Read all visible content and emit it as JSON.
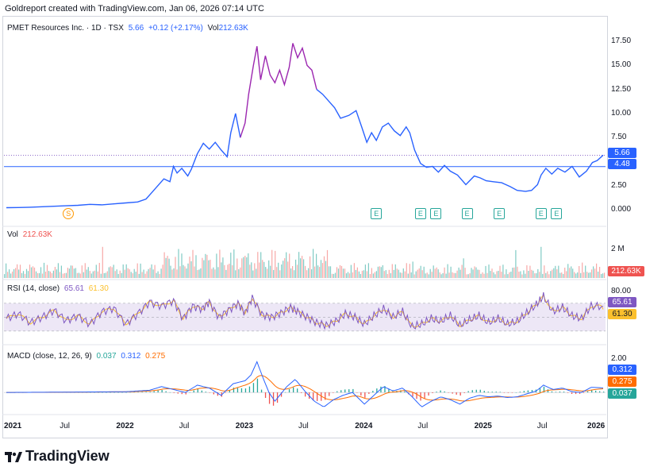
{
  "header": {
    "credit": "Goldreport created with TradingView.com, Jan 06, 2026 07:14 UTC"
  },
  "legend": {
    "symbol": "PMET Resources Inc. · 1D · TSX",
    "last": "5.66",
    "change": "+0.12 (+2.17%)",
    "vol_label": "Vol",
    "vol_value": "212.63K"
  },
  "volume_pane": {
    "label": "Vol",
    "value": "212.63K",
    "tick": "2 M",
    "tag": "212.63K"
  },
  "rsi_pane": {
    "label": "RSI (14, close)",
    "rsi": "65.61",
    "ma": "61.30",
    "tick": "80.00",
    "tag_rsi": "65.61",
    "tag_ma": "61.30"
  },
  "macd_pane": {
    "label": "MACD (close, 12, 26, 9)",
    "hist": "0.037",
    "macd": "0.312",
    "signal": "0.275",
    "tick": "2.00",
    "tag_macd": "0.312",
    "tag_signal": "0.275",
    "tag_hist": "0.037"
  },
  "price_tags": {
    "last": "5.66",
    "line": "4.48"
  },
  "markers": {
    "split": "S",
    "earnings": "E"
  },
  "colors": {
    "price_blue": "#2962ff",
    "price_purple": "#9c27b0",
    "up": "#26a69a",
    "down": "#ef5350",
    "rsi": "#7e57c2",
    "rsi_ma": "#fbc02d",
    "macd": "#2962ff",
    "signal": "#ff6d00"
  },
  "brand": "TradingView",
  "chart_data": {
    "type": "line",
    "title": "PMET Resources Inc. · 1D · TSX",
    "y_ticks": [
      "17.50",
      "15.00",
      "12.50",
      "10.00",
      "7.50",
      "2.50",
      "0.000"
    ],
    "ylim": [
      -0.5,
      18.5
    ],
    "x_ticks": [
      {
        "label": "2021",
        "t": 2021.0,
        "year": true
      },
      {
        "label": "Jul",
        "t": 2021.5,
        "year": false
      },
      {
        "label": "2022",
        "t": 2022.0,
        "year": true
      },
      {
        "label": "Jul",
        "t": 2022.5,
        "year": false
      },
      {
        "label": "2023",
        "t": 2023.0,
        "year": true
      },
      {
        "label": "Jul",
        "t": 2023.5,
        "year": false
      },
      {
        "label": "2024",
        "t": 2024.0,
        "year": true
      },
      {
        "label": "Jul",
        "t": 2024.5,
        "year": false
      },
      {
        "label": "2025",
        "t": 2025.0,
        "year": true
      },
      {
        "label": "Jul",
        "t": 2025.5,
        "year": false
      },
      {
        "label": "2026",
        "t": 2026.0,
        "year": true
      }
    ],
    "xlim": [
      2020.98,
      2026.02
    ],
    "horizontal_line": 4.48,
    "last_price": 5.66,
    "price": [
      [
        2021.0,
        0.2
      ],
      [
        2021.1,
        0.22
      ],
      [
        2021.2,
        0.25
      ],
      [
        2021.3,
        0.3
      ],
      [
        2021.4,
        0.35
      ],
      [
        2021.5,
        0.4
      ],
      [
        2021.6,
        0.45
      ],
      [
        2021.7,
        0.55
      ],
      [
        2021.8,
        0.5
      ],
      [
        2021.9,
        0.6
      ],
      [
        2022.0,
        0.7
      ],
      [
        2022.1,
        0.8
      ],
      [
        2022.17,
        1.1
      ],
      [
        2022.22,
        1.8
      ],
      [
        2022.27,
        2.5
      ],
      [
        2022.32,
        3.2
      ],
      [
        2022.37,
        2.9
      ],
      [
        2022.4,
        4.5
      ],
      [
        2022.43,
        3.8
      ],
      [
        2022.47,
        4.3
      ],
      [
        2022.52,
        3.5
      ],
      [
        2022.55,
        4.2
      ],
      [
        2022.6,
        5.8
      ],
      [
        2022.65,
        6.9
      ],
      [
        2022.7,
        6.3
      ],
      [
        2022.75,
        7.0
      ],
      [
        2022.8,
        6.2
      ],
      [
        2022.85,
        5.5
      ],
      [
        2022.88,
        8.0
      ],
      [
        2022.92,
        10.0
      ],
      [
        2022.96,
        7.5
      ],
      [
        2023.0,
        9.0
      ],
      [
        2023.03,
        12.0
      ],
      [
        2023.07,
        15.0
      ],
      [
        2023.1,
        17.0
      ],
      [
        2023.13,
        13.5
      ],
      [
        2023.17,
        16.0
      ],
      [
        2023.21,
        14.0
      ],
      [
        2023.25,
        13.2
      ],
      [
        2023.29,
        14.5
      ],
      [
        2023.33,
        13.0
      ],
      [
        2023.37,
        14.8
      ],
      [
        2023.4,
        17.3
      ],
      [
        2023.44,
        15.8
      ],
      [
        2023.48,
        16.8
      ],
      [
        2023.52,
        15.0
      ],
      [
        2023.56,
        14.5
      ],
      [
        2023.6,
        12.5
      ],
      [
        2023.65,
        12.0
      ],
      [
        2023.7,
        11.3
      ],
      [
        2023.75,
        10.6
      ],
      [
        2023.8,
        9.5
      ],
      [
        2023.87,
        9.8
      ],
      [
        2023.93,
        10.3
      ],
      [
        2023.98,
        8.5
      ],
      [
        2024.02,
        7.0
      ],
      [
        2024.06,
        8.0
      ],
      [
        2024.1,
        7.2
      ],
      [
        2024.15,
        8.6
      ],
      [
        2024.2,
        9.0
      ],
      [
        2024.25,
        8.2
      ],
      [
        2024.3,
        7.7
      ],
      [
        2024.35,
        8.6
      ],
      [
        2024.38,
        8.0
      ],
      [
        2024.42,
        6.2
      ],
      [
        2024.47,
        4.8
      ],
      [
        2024.52,
        4.4
      ],
      [
        2024.57,
        4.5
      ],
      [
        2024.62,
        3.9
      ],
      [
        2024.67,
        4.6
      ],
      [
        2024.72,
        4.0
      ],
      [
        2024.78,
        3.6
      ],
      [
        2024.85,
        2.6
      ],
      [
        2024.92,
        3.5
      ],
      [
        2024.97,
        3.3
      ],
      [
        2025.02,
        3.0
      ],
      [
        2025.08,
        2.9
      ],
      [
        2025.15,
        2.8
      ],
      [
        2025.22,
        2.4
      ],
      [
        2025.28,
        2.0
      ],
      [
        2025.35,
        1.9
      ],
      [
        2025.4,
        2.0
      ],
      [
        2025.45,
        2.6
      ],
      [
        2025.48,
        3.6
      ],
      [
        2025.52,
        4.3
      ],
      [
        2025.57,
        3.7
      ],
      [
        2025.62,
        4.3
      ],
      [
        2025.68,
        3.9
      ],
      [
        2025.74,
        4.5
      ],
      [
        2025.8,
        3.4
      ],
      [
        2025.86,
        4.0
      ],
      [
        2025.91,
        4.9
      ],
      [
        2025.95,
        5.1
      ],
      [
        2026.0,
        5.66
      ]
    ],
    "peak_range": [
      2022.98,
      2023.62
    ],
    "split_marker": {
      "t": 2021.52,
      "label": "S"
    },
    "earnings_markers": [
      2024.1,
      2024.47,
      2024.6,
      2024.86,
      2025.13,
      2025.48,
      2025.61
    ],
    "volume_tick": "2 M",
    "rsi": {
      "ticks": [
        "80.00"
      ],
      "band": [
        30,
        70
      ],
      "last": 65.61,
      "ma_last": 61.3,
      "series": [
        [
          2021.0,
          48
        ],
        [
          2021.1,
          55
        ],
        [
          2021.2,
          42
        ],
        [
          2021.3,
          50
        ],
        [
          2021.4,
          60
        ],
        [
          2021.5,
          45
        ],
        [
          2021.6,
          52
        ],
        [
          2021.7,
          40
        ],
        [
          2021.8,
          58
        ],
        [
          2021.9,
          63
        ],
        [
          2022.0,
          40
        ],
        [
          2022.1,
          55
        ],
        [
          2022.2,
          72
        ],
        [
          2022.3,
          66
        ],
        [
          2022.4,
          74
        ],
        [
          2022.48,
          48
        ],
        [
          2022.56,
          66
        ],
        [
          2022.64,
          62
        ],
        [
          2022.7,
          72
        ],
        [
          2022.78,
          50
        ],
        [
          2022.86,
          60
        ],
        [
          2022.94,
          70
        ],
        [
          2023.0,
          56
        ],
        [
          2023.06,
          78
        ],
        [
          2023.14,
          54
        ],
        [
          2023.22,
          50
        ],
        [
          2023.3,
          56
        ],
        [
          2023.38,
          64
        ],
        [
          2023.44,
          58
        ],
        [
          2023.52,
          50
        ],
        [
          2023.6,
          42
        ],
        [
          2023.68,
          38
        ],
        [
          2023.76,
          44
        ],
        [
          2023.84,
          55
        ],
        [
          2023.92,
          50
        ],
        [
          2024.0,
          40
        ],
        [
          2024.08,
          52
        ],
        [
          2024.16,
          62
        ],
        [
          2024.24,
          50
        ],
        [
          2024.32,
          58
        ],
        [
          2024.4,
          36
        ],
        [
          2024.48,
          40
        ],
        [
          2024.56,
          48
        ],
        [
          2024.64,
          44
        ],
        [
          2024.72,
          52
        ],
        [
          2024.8,
          38
        ],
        [
          2024.88,
          46
        ],
        [
          2024.96,
          52
        ],
        [
          2025.04,
          42
        ],
        [
          2025.12,
          48
        ],
        [
          2025.2,
          40
        ],
        [
          2025.28,
          44
        ],
        [
          2025.36,
          56
        ],
        [
          2025.44,
          68
        ],
        [
          2025.5,
          80
        ],
        [
          2025.58,
          58
        ],
        [
          2025.66,
          64
        ],
        [
          2025.74,
          52
        ],
        [
          2025.82,
          48
        ],
        [
          2025.9,
          66
        ],
        [
          2026.0,
          65.61
        ]
      ]
    },
    "macd": {
      "ticks": [
        "2.00"
      ],
      "macd_last": 0.312,
      "signal_last": 0.275,
      "hist_last": 0.037,
      "macd_series": [
        [
          2021.0,
          0.0
        ],
        [
          2021.5,
          0.02
        ],
        [
          2022.0,
          0.05
        ],
        [
          2022.2,
          0.15
        ],
        [
          2022.3,
          0.4
        ],
        [
          2022.4,
          0.2
        ],
        [
          2022.5,
          0.0
        ],
        [
          2022.6,
          0.5
        ],
        [
          2022.7,
          0.3
        ],
        [
          2022.8,
          -0.2
        ],
        [
          2022.9,
          0.6
        ],
        [
          2023.0,
          0.8
        ],
        [
          2023.05,
          1.2
        ],
        [
          2023.1,
          2.1
        ],
        [
          2023.15,
          1.0
        ],
        [
          2023.2,
          0.0
        ],
        [
          2023.25,
          -0.6
        ],
        [
          2023.35,
          0.4
        ],
        [
          2023.42,
          0.9
        ],
        [
          2023.5,
          0.1
        ],
        [
          2023.58,
          -0.6
        ],
        [
          2023.66,
          -1.0
        ],
        [
          2023.74,
          -0.5
        ],
        [
          2023.82,
          -0.2
        ],
        [
          2023.9,
          0.0
        ],
        [
          2024.0,
          -0.8
        ],
        [
          2024.08,
          -0.2
        ],
        [
          2024.16,
          0.4
        ],
        [
          2024.24,
          0.1
        ],
        [
          2024.32,
          0.3
        ],
        [
          2024.4,
          -0.3
        ],
        [
          2024.48,
          -1.0
        ],
        [
          2024.56,
          -0.6
        ],
        [
          2024.64,
          -0.3
        ],
        [
          2024.72,
          -0.5
        ],
        [
          2024.8,
          -0.8
        ],
        [
          2024.88,
          -0.4
        ],
        [
          2024.96,
          -0.2
        ],
        [
          2025.04,
          -0.3
        ],
        [
          2025.12,
          -0.25
        ],
        [
          2025.2,
          -0.35
        ],
        [
          2025.28,
          -0.3
        ],
        [
          2025.36,
          -0.1
        ],
        [
          2025.44,
          0.1
        ],
        [
          2025.5,
          0.5
        ],
        [
          2025.58,
          0.2
        ],
        [
          2025.66,
          0.3
        ],
        [
          2025.74,
          0.05
        ],
        [
          2025.82,
          0.0
        ],
        [
          2025.9,
          0.35
        ],
        [
          2026.0,
          0.312
        ]
      ],
      "ylim": [
        -1.3,
        2.4
      ]
    }
  }
}
